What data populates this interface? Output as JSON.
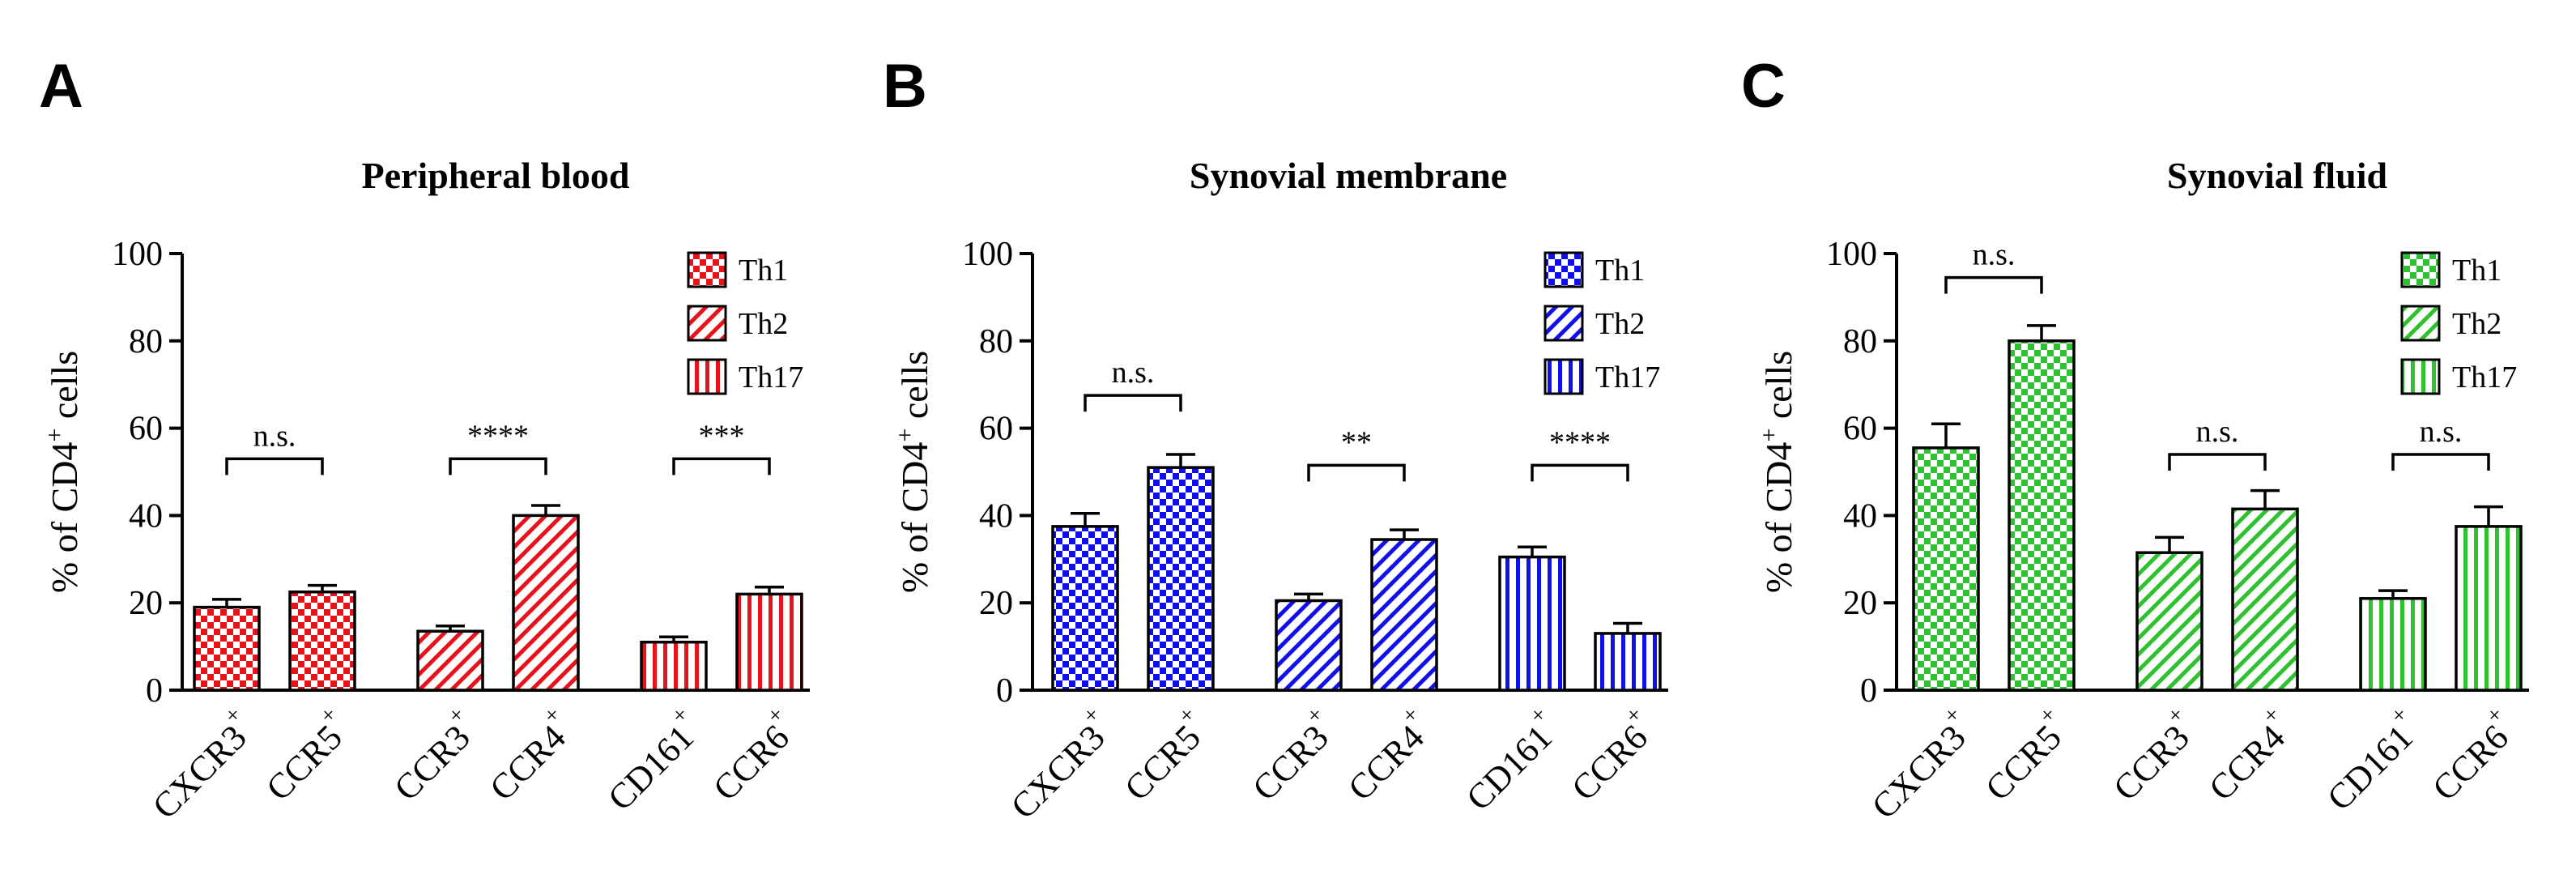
{
  "chart_data": [
    {
      "type": "bar",
      "panel": "A",
      "title": "Peripheral blood",
      "ylabel_prefix": "% of CD4",
      "ylabel_sup": "+",
      "ylabel_suffix": " cells",
      "ylim": [
        0,
        100
      ],
      "yticks": [
        "0",
        "20",
        "40",
        "60",
        "80",
        "100"
      ],
      "color": "#e8121c",
      "legend": [
        {
          "name": "Th1",
          "pattern": "check"
        },
        {
          "name": "Th2",
          "pattern": "diag"
        },
        {
          "name": "Th17",
          "pattern": "vert"
        }
      ],
      "bars": [
        {
          "base": "CXCR3",
          "sup": "+",
          "value": 19,
          "err": 1.8,
          "pattern": "check"
        },
        {
          "base": "CCR5",
          "sup": "+",
          "value": 22.5,
          "err": 1.5,
          "pattern": "check"
        },
        {
          "base": "CCR3",
          "sup": "+",
          "value": 13.5,
          "err": 1.2,
          "pattern": "diag"
        },
        {
          "base": "CCR4",
          "sup": "+",
          "value": 40,
          "err": 2.3,
          "pattern": "diag"
        },
        {
          "base": "CD161",
          "sup": "+",
          "value": 11,
          "err": 1.2,
          "pattern": "vert"
        },
        {
          "base": "CCR6",
          "sup": "+",
          "value": 22,
          "err": 1.6,
          "pattern": "vert"
        }
      ],
      "significance": [
        {
          "label": "n.s.",
          "bars": [
            0,
            1
          ],
          "y": 53
        },
        {
          "label": "****",
          "bars": [
            2,
            3
          ],
          "y": 53
        },
        {
          "label": "***",
          "bars": [
            4,
            5
          ],
          "y": 53
        }
      ]
    },
    {
      "type": "bar",
      "panel": "B",
      "title": "Synovial membrane",
      "ylabel_prefix": "% of CD4",
      "ylabel_sup": "+",
      "ylabel_suffix": " cells",
      "ylim": [
        0,
        100
      ],
      "yticks": [
        "0",
        "20",
        "40",
        "60",
        "80",
        "100"
      ],
      "color": "#1010e8",
      "legend": [
        {
          "name": "Th1",
          "pattern": "check"
        },
        {
          "name": "Th2",
          "pattern": "diag"
        },
        {
          "name": "Th17",
          "pattern": "vert"
        }
      ],
      "bars": [
        {
          "base": "CXCR3",
          "sup": "+",
          "value": 37.5,
          "err": 3,
          "pattern": "check"
        },
        {
          "base": "CCR5",
          "sup": "+",
          "value": 51,
          "err": 3,
          "pattern": "check"
        },
        {
          "base": "CCR3",
          "sup": "+",
          "value": 20.5,
          "err": 1.5,
          "pattern": "diag"
        },
        {
          "base": "CCR4",
          "sup": "+",
          "value": 34.5,
          "err": 2.2,
          "pattern": "diag"
        },
        {
          "base": "CD161",
          "sup": "+",
          "value": 30.5,
          "err": 2.3,
          "pattern": "vert"
        },
        {
          "base": "CCR6",
          "sup": "+",
          "value": 13,
          "err": 2.3,
          "pattern": "vert"
        }
      ],
      "significance": [
        {
          "label": "n.s.",
          "bars": [
            0,
            1
          ],
          "y": 67.5
        },
        {
          "label": "**",
          "bars": [
            2,
            3
          ],
          "y": 51.5
        },
        {
          "label": "****",
          "bars": [
            4,
            5
          ],
          "y": 51.5
        }
      ]
    },
    {
      "type": "bar",
      "panel": "C",
      "title": "Synovial fluid",
      "ylabel_prefix": "% of CD4",
      "ylabel_sup": "+",
      "ylabel_suffix": " cells",
      "ylim": [
        0,
        100
      ],
      "yticks": [
        "0",
        "20",
        "40",
        "60",
        "80",
        "100"
      ],
      "color": "#2ec22e",
      "legend": [
        {
          "name": "Th1",
          "pattern": "check"
        },
        {
          "name": "Th2",
          "pattern": "diag"
        },
        {
          "name": "Th17",
          "pattern": "vert"
        }
      ],
      "bars": [
        {
          "base": "CXCR3",
          "sup": "+",
          "value": 55.5,
          "err": 5.5,
          "pattern": "check"
        },
        {
          "base": "CCR5",
          "sup": "+",
          "value": 80,
          "err": 3.5,
          "pattern": "check"
        },
        {
          "base": "CCR3",
          "sup": "+",
          "value": 31.5,
          "err": 3.5,
          "pattern": "diag"
        },
        {
          "base": "CCR4",
          "sup": "+",
          "value": 41.5,
          "err": 4.2,
          "pattern": "diag"
        },
        {
          "base": "CD161",
          "sup": "+",
          "value": 21,
          "err": 1.8,
          "pattern": "vert"
        },
        {
          "base": "CCR6",
          "sup": "+",
          "value": 37.5,
          "err": 4.5,
          "pattern": "vert"
        }
      ],
      "significance": [
        {
          "label": "n.s.",
          "bars": [
            0,
            1
          ],
          "y": 94.5
        },
        {
          "label": "n.s.",
          "bars": [
            2,
            3
          ],
          "y": 54
        },
        {
          "label": "n.s.",
          "bars": [
            4,
            5
          ],
          "y": 54
        }
      ]
    }
  ]
}
